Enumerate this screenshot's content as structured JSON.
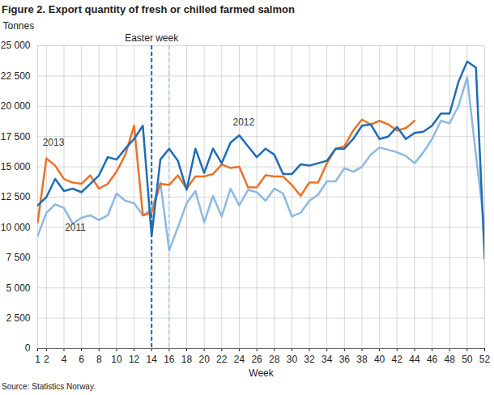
{
  "chart_data": {
    "type": "line",
    "title": "Figure 2. Export quantity of fresh or chilled farmed salmon",
    "caption": "Source: Statistics Norway.",
    "y_label": "Tonnes",
    "x_label": "Week",
    "x": [
      1,
      2,
      3,
      4,
      5,
      6,
      7,
      8,
      9,
      10,
      11,
      12,
      13,
      14,
      15,
      16,
      17,
      18,
      19,
      20,
      21,
      22,
      23,
      24,
      25,
      26,
      27,
      28,
      29,
      30,
      31,
      32,
      33,
      34,
      35,
      36,
      37,
      38,
      39,
      40,
      41,
      42,
      43,
      44,
      45,
      46,
      47,
      48,
      49,
      50,
      51,
      52
    ],
    "xlim": [
      1,
      52
    ],
    "xticks": [
      1,
      2,
      4,
      6,
      8,
      10,
      12,
      14,
      16,
      18,
      20,
      22,
      24,
      26,
      28,
      30,
      32,
      34,
      36,
      38,
      40,
      42,
      44,
      46,
      48,
      50,
      52
    ],
    "ylim": [
      0,
      25000
    ],
    "yticks": [
      0,
      {
        "value": 2500,
        "label": "2 500"
      },
      {
        "value": 5000,
        "label": "5 000"
      },
      {
        "value": 7500,
        "label": "7 500"
      },
      {
        "value": 10000,
        "label": "10 000"
      },
      {
        "value": 12500,
        "label": "12 500"
      },
      {
        "value": 15000,
        "label": "15 000"
      },
      {
        "value": 17500,
        "label": "17 500"
      },
      {
        "value": 20000,
        "label": "20 000"
      },
      {
        "value": 22500,
        "label": "22 500"
      },
      {
        "value": 25000,
        "label": "25 000"
      }
    ],
    "grid": true,
    "reference_lines": [
      {
        "x": 14,
        "label": "Easter week",
        "color": "#1f64b0",
        "line_style": "dashed"
      },
      {
        "x": 16,
        "color": "#8db9e2",
        "line_style": "dashed"
      }
    ],
    "series": [
      {
        "name": "2011",
        "color": "#8db9e2",
        "annotation": {
          "x": 5.3,
          "y": 10000
        },
        "values": [
          9300,
          11200,
          11900,
          11600,
          10300,
          10800,
          11000,
          10600,
          11000,
          12800,
          12200,
          12000,
          11000,
          11500,
          13700,
          8100,
          10000,
          12000,
          13000,
          10400,
          12600,
          10900,
          13200,
          11800,
          13100,
          12900,
          12200,
          13200,
          12800,
          10900,
          11200,
          12200,
          12700,
          13800,
          13800,
          14900,
          14600,
          15000,
          16000,
          16600,
          16400,
          16200,
          15900,
          15300,
          16200,
          17300,
          18800,
          18600,
          20000,
          22400,
          16000,
          9900
        ]
      },
      {
        "name": "2013",
        "color": "#e8732a",
        "annotation": {
          "x": 2.8,
          "y": 17000
        },
        "values": [
          10400,
          15700,
          15100,
          14000,
          13700,
          13600,
          14300,
          13200,
          13600,
          14600,
          16000,
          18400,
          11000,
          11200,
          13600,
          13500,
          14300,
          13200,
          14200,
          14200,
          14400,
          15200,
          14900,
          15000,
          13300,
          13300,
          14300,
          14200,
          14200,
          13500,
          12600,
          13700,
          13700,
          15300,
          16500,
          16700,
          18000,
          18900,
          18500,
          18800,
          18500,
          18000,
          18200,
          18800,
          null,
          null,
          null,
          null,
          null,
          null,
          null,
          null
        ]
      },
      {
        "name": "2012",
        "color": "#1f6db5",
        "annotation": {
          "x": 24.5,
          "y": 18700
        },
        "values": [
          11800,
          12500,
          14000,
          13000,
          13200,
          12900,
          13600,
          14300,
          15800,
          15600,
          16500,
          17300,
          18400,
          9300,
          15600,
          16500,
          15500,
          13100,
          16500,
          14500,
          16500,
          15300,
          17000,
          17600,
          16700,
          15800,
          16500,
          16000,
          14400,
          14400,
          15200,
          15100,
          15300,
          15500,
          16500,
          16500,
          17300,
          18400,
          18500,
          17300,
          17500,
          18300,
          17300,
          17800,
          17900,
          18400,
          19400,
          19400,
          22000,
          23700,
          23200,
          7400
        ]
      }
    ]
  }
}
